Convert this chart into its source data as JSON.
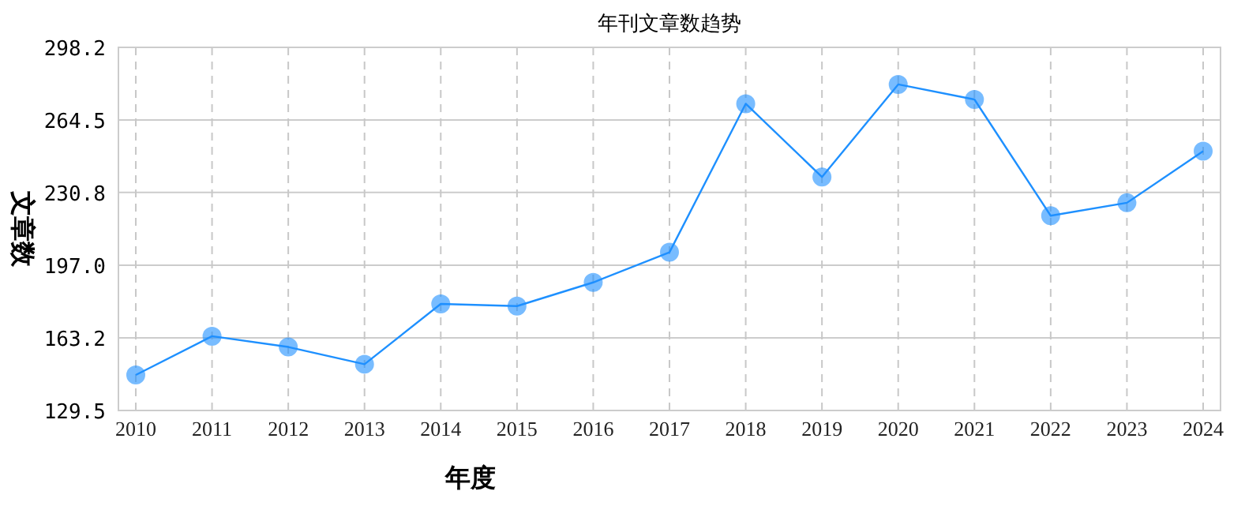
{
  "chart_data": {
    "type": "line",
    "title": "年刊文章数趋势",
    "xlabel": "年度",
    "ylabel": "文章数",
    "categories": [
      "2010",
      "2011",
      "2012",
      "2013",
      "2014",
      "2015",
      "2016",
      "2017",
      "2018",
      "2019",
      "2020",
      "2021",
      "2022",
      "2023",
      "2024"
    ],
    "series": [
      {
        "color": "#1e90ff",
        "values": [
          146,
          164,
          159,
          151,
          179,
          178,
          189,
          203,
          272,
          238,
          281,
          274,
          220,
          226,
          250
        ]
      }
    ],
    "ylim": [
      129.5,
      298.2
    ],
    "yticks": [
      129.5,
      163.2,
      {
        "value": 197,
        "label": "197.0"
      },
      230.8,
      264.5,
      298.2
    ],
    "grid": true,
    "marker": "circle",
    "line_style": "solid"
  }
}
